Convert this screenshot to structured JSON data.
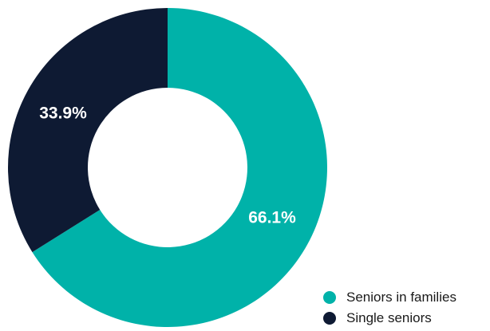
{
  "chart_data": {
    "type": "pie",
    "donut": true,
    "categories": [
      "Seniors in families",
      "Single seniors"
    ],
    "values": [
      66.1,
      33.9
    ],
    "value_labels": [
      "66.1%",
      "33.9%"
    ],
    "colors": [
      "#00b2a9",
      "#0e1a33"
    ],
    "title": "",
    "legend": {
      "position": "bottom-right",
      "items": [
        {
          "label": "Seniors in families",
          "color": "#00b2a9"
        },
        {
          "label": "Single seniors",
          "color": "#0e1a33"
        }
      ]
    }
  }
}
